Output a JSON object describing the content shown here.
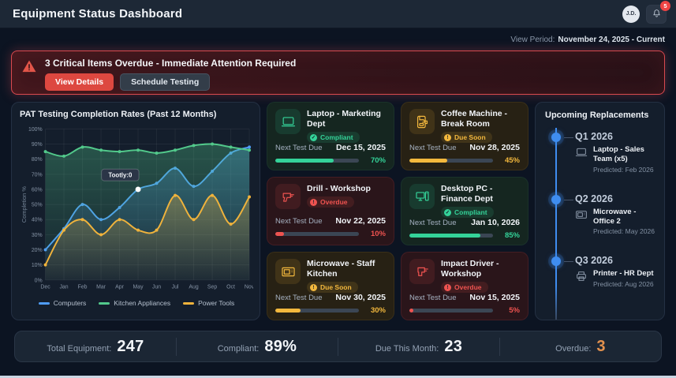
{
  "header": {
    "title": "Equipment Status Dashboard",
    "avatar_initials": "J.D.",
    "notification_count": "5"
  },
  "view_period": {
    "label": "View Period:",
    "value": "November 24, 2025 - Current"
  },
  "alert": {
    "message": "3 Critical Items Overdue - Immediate Attention Required",
    "view_details_label": "View Details",
    "schedule_testing_label": "Schedule Testing"
  },
  "chart_data": {
    "type": "line",
    "title": "PAT Testing Completion Rates (Past 12 Months)",
    "xlabel": "",
    "ylabel": "Completion %",
    "ylim": [
      0,
      100
    ],
    "y_tick_step": 10,
    "grid": true,
    "legend_position": "bottom",
    "categories": [
      "Dec",
      "Jan",
      "Feb",
      "Mar",
      "Apr",
      "May",
      "Jun",
      "Jul",
      "Aug",
      "Sep",
      "Oct",
      "Nov"
    ],
    "series": [
      {
        "name": "Computers",
        "color": "#4f9cf7",
        "values": [
          20,
          34,
          50,
          40,
          48,
          60,
          64,
          74,
          62,
          72,
          84,
          88
        ]
      },
      {
        "name": "Kitchen Appliances",
        "color": "#52c98b",
        "values": [
          85,
          82,
          88,
          86,
          85,
          86,
          84,
          86,
          89,
          90,
          88,
          86
        ]
      },
      {
        "name": "Power Tools",
        "color": "#f0b33c",
        "values": [
          10,
          33,
          40,
          30,
          40,
          33,
          33,
          56,
          40,
          56,
          37,
          55
        ]
      }
    ],
    "tooltip": {
      "label": "Tootly:0",
      "series": "Computers",
      "month_index": 5
    }
  },
  "equipment": {
    "next_test_label": "Next Test Due",
    "cards": [
      {
        "name": "Laptop - Marketing Dept",
        "icon": "laptop",
        "status": "Compliant",
        "status_type": "compliant",
        "due_date": "Dec 15, 2025",
        "percent": 70,
        "percent_label": "70%"
      },
      {
        "name": "Coffee Machine - Break Room",
        "icon": "coffee-machine",
        "status": "Due Soon",
        "status_type": "due_soon",
        "due_date": "Nov 28, 2025",
        "percent": 45,
        "percent_label": "45%"
      },
      {
        "name": "Drill - Workshop",
        "icon": "drill",
        "status": "Overdue",
        "status_type": "overdue",
        "due_date": "Nov 22, 2025",
        "percent": 10,
        "percent_label": "10%"
      },
      {
        "name": "Desktop PC - Finance Dept",
        "icon": "desktop-pc",
        "status": "Compliant",
        "status_type": "compliant",
        "due_date": "Jan 10, 2026",
        "percent": 85,
        "percent_label": "85%"
      },
      {
        "name": "Microwave - Staff Kitchen",
        "icon": "microwave",
        "status": "Due Soon",
        "status_type": "due_soon",
        "due_date": "Nov 30, 2025",
        "percent": 30,
        "percent_label": "30%"
      },
      {
        "name": "Impact Driver - Workshop",
        "icon": "impact-driver",
        "status": "Overdue",
        "status_type": "overdue",
        "due_date": "Nov 15, 2025",
        "percent": 5,
        "percent_label": "5%"
      }
    ]
  },
  "replacements": {
    "title": "Upcoming Replacements",
    "items": [
      {
        "quarter": "Q1 2026",
        "name": "Laptop - Sales Team (x5)",
        "predicted": "Predicted: Feb 2026",
        "icon": "laptop"
      },
      {
        "quarter": "Q2 2026",
        "name": "Microwave - Office 2",
        "predicted": "Predicted: May 2026",
        "icon": "microwave"
      },
      {
        "quarter": "Q3 2026",
        "name": "Printer - HR Dept",
        "predicted": "Predicted: Aug 2026",
        "icon": "printer"
      }
    ]
  },
  "stats": [
    {
      "label": "Total Equipment:",
      "value": "247",
      "color": "#f3f6fa"
    },
    {
      "label": "Compliant:",
      "value": "89%",
      "color": "#f3f6fa"
    },
    {
      "label": "Due This Month:",
      "value": "23",
      "color": "#f3f6fa"
    },
    {
      "label": "Overdue:",
      "value": "3",
      "color": "#e2914e"
    }
  ],
  "status_colors": {
    "compliant": "#34d399",
    "due_soon": "#f3b83d",
    "overdue": "#ef5350"
  }
}
